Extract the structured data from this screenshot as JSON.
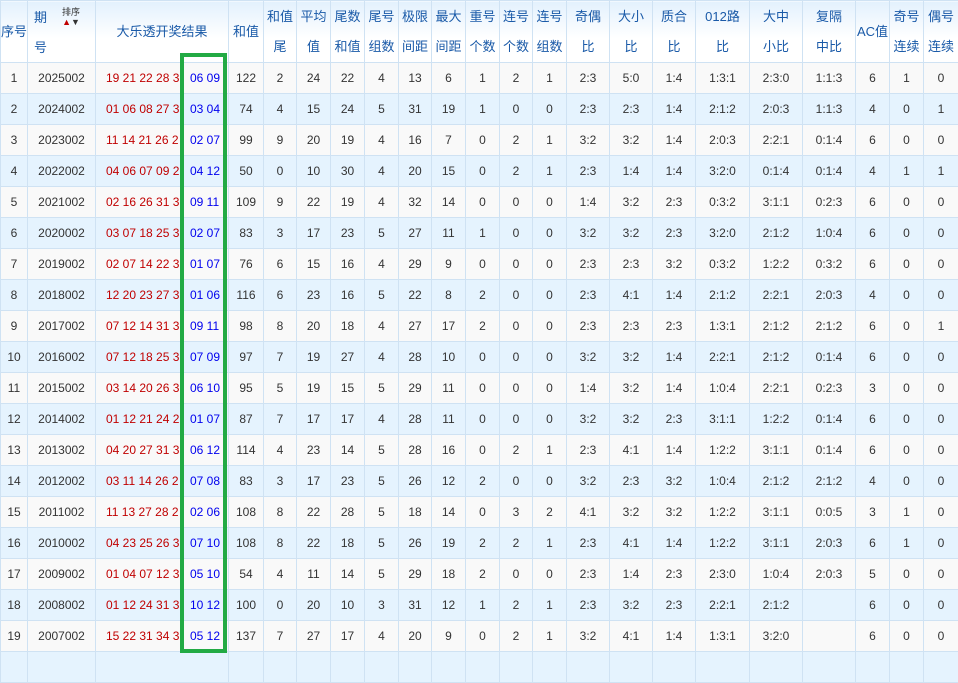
{
  "header": {
    "index": "序号",
    "issue_top": "期",
    "issue_bottom": "号",
    "sort_label": "排序",
    "result": "大乐透开奖结果",
    "cols": [
      [
        "和值"
      ],
      [
        "和值",
        "尾"
      ],
      [
        "平均",
        "值"
      ],
      [
        "尾数",
        "和值"
      ],
      [
        "尾号",
        "组数"
      ],
      [
        "极限",
        "间距"
      ],
      [
        "最大",
        "间距"
      ],
      [
        "重号",
        "个数"
      ],
      [
        "连号",
        "个数"
      ],
      [
        "连号",
        "组数"
      ],
      [
        "奇偶",
        "比"
      ],
      [
        "大小",
        "比"
      ],
      [
        "质合",
        "比"
      ],
      [
        "012路",
        "比"
      ],
      [
        "大中",
        "小比"
      ],
      [
        "复隔",
        "中比"
      ],
      [
        "AC值"
      ],
      [
        "奇号",
        "连续"
      ],
      [
        "偶号",
        "连续"
      ]
    ]
  },
  "colors": {
    "red_ball": "#c00000",
    "blue_ball": "#0000ee",
    "highlight_box": "#22aa44"
  },
  "rows": [
    [
      "1",
      "2025002",
      "19 21 22 28 3",
      "06 09",
      "122",
      "2",
      "24",
      "22",
      "4",
      "13",
      "6",
      "1",
      "2",
      "1",
      "2:3",
      "5:0",
      "1:4",
      "1:3:1",
      "2:3:0",
      "1:1:3",
      "6",
      "1",
      "0"
    ],
    [
      "2",
      "2024002",
      "01 06 08 27 3",
      "03 04",
      "74",
      "4",
      "15",
      "24",
      "5",
      "31",
      "19",
      "1",
      "0",
      "0",
      "2:3",
      "2:3",
      "1:4",
      "2:1:2",
      "2:0:3",
      "1:1:3",
      "4",
      "0",
      "1"
    ],
    [
      "3",
      "2023002",
      "11 14 21 26 2",
      "02 07",
      "99",
      "9",
      "20",
      "19",
      "4",
      "16",
      "7",
      "0",
      "2",
      "1",
      "3:2",
      "3:2",
      "1:4",
      "2:0:3",
      "2:2:1",
      "0:1:4",
      "6",
      "0",
      "0"
    ],
    [
      "4",
      "2022002",
      "04 06 07 09 2",
      "04 12",
      "50",
      "0",
      "10",
      "30",
      "4",
      "20",
      "15",
      "0",
      "2",
      "1",
      "2:3",
      "1:4",
      "1:4",
      "3:2:0",
      "0:1:4",
      "0:1:4",
      "4",
      "1",
      "1"
    ],
    [
      "5",
      "2021002",
      "02 16 26 31 3",
      "09 11",
      "109",
      "9",
      "22",
      "19",
      "4",
      "32",
      "14",
      "0",
      "0",
      "0",
      "1:4",
      "3:2",
      "2:3",
      "0:3:2",
      "3:1:1",
      "0:2:3",
      "6",
      "0",
      "0"
    ],
    [
      "6",
      "2020002",
      "03 07 18 25 3",
      "02 07",
      "83",
      "3",
      "17",
      "23",
      "5",
      "27",
      "11",
      "1",
      "0",
      "0",
      "3:2",
      "3:2",
      "2:3",
      "3:2:0",
      "2:1:2",
      "1:0:4",
      "6",
      "0",
      "0"
    ],
    [
      "7",
      "2019002",
      "02 07 14 22 3",
      "01 07",
      "76",
      "6",
      "15",
      "16",
      "4",
      "29",
      "9",
      "0",
      "0",
      "0",
      "2:3",
      "2:3",
      "3:2",
      "0:3:2",
      "1:2:2",
      "0:3:2",
      "6",
      "0",
      "0"
    ],
    [
      "8",
      "2018002",
      "12 20 23 27 3",
      "01 06",
      "116",
      "6",
      "23",
      "16",
      "5",
      "22",
      "8",
      "2",
      "0",
      "0",
      "2:3",
      "4:1",
      "1:4",
      "2:1:2",
      "2:2:1",
      "2:0:3",
      "4",
      "0",
      "0"
    ],
    [
      "9",
      "2017002",
      "07 12 14 31 3",
      "09 11",
      "98",
      "8",
      "20",
      "18",
      "4",
      "27",
      "17",
      "2",
      "0",
      "0",
      "2:3",
      "2:3",
      "2:3",
      "1:3:1",
      "2:1:2",
      "2:1:2",
      "6",
      "0",
      "1"
    ],
    [
      "10",
      "2016002",
      "07 12 18 25 3",
      "07 09",
      "97",
      "7",
      "19",
      "27",
      "4",
      "28",
      "10",
      "0",
      "0",
      "0",
      "3:2",
      "3:2",
      "1:4",
      "2:2:1",
      "2:1:2",
      "0:1:4",
      "6",
      "0",
      "0"
    ],
    [
      "11",
      "2015002",
      "03 14 20 26 3",
      "06 10",
      "95",
      "5",
      "19",
      "15",
      "5",
      "29",
      "11",
      "0",
      "0",
      "0",
      "1:4",
      "3:2",
      "1:4",
      "1:0:4",
      "2:2:1",
      "0:2:3",
      "3",
      "0",
      "0"
    ],
    [
      "12",
      "2014002",
      "01 12 21 24 2",
      "01 07",
      "87",
      "7",
      "17",
      "17",
      "4",
      "28",
      "11",
      "0",
      "0",
      "0",
      "3:2",
      "3:2",
      "2:3",
      "3:1:1",
      "1:2:2",
      "0:1:4",
      "6",
      "0",
      "0"
    ],
    [
      "13",
      "2013002",
      "04 20 27 31 3",
      "06 12",
      "114",
      "4",
      "23",
      "14",
      "5",
      "28",
      "16",
      "0",
      "2",
      "1",
      "2:3",
      "4:1",
      "1:4",
      "1:2:2",
      "3:1:1",
      "0:1:4",
      "6",
      "0",
      "0"
    ],
    [
      "14",
      "2012002",
      "03 11 14 26 2",
      "07 08",
      "83",
      "3",
      "17",
      "23",
      "5",
      "26",
      "12",
      "2",
      "0",
      "0",
      "3:2",
      "2:3",
      "3:2",
      "1:0:4",
      "2:1:2",
      "2:1:2",
      "4",
      "0",
      "0"
    ],
    [
      "15",
      "2011002",
      "11 13 27 28 2",
      "02 06",
      "108",
      "8",
      "22",
      "28",
      "5",
      "18",
      "14",
      "0",
      "3",
      "2",
      "4:1",
      "3:2",
      "3:2",
      "1:2:2",
      "3:1:1",
      "0:0:5",
      "3",
      "1",
      "0"
    ],
    [
      "16",
      "2010002",
      "04 23 25 26 3",
      "07 10",
      "108",
      "8",
      "22",
      "18",
      "5",
      "26",
      "19",
      "2",
      "2",
      "1",
      "2:3",
      "4:1",
      "1:4",
      "1:2:2",
      "3:1:1",
      "2:0:3",
      "6",
      "1",
      "0"
    ],
    [
      "17",
      "2009002",
      "01 04 07 12 3",
      "05 10",
      "54",
      "4",
      "11",
      "14",
      "5",
      "29",
      "18",
      "2",
      "0",
      "0",
      "2:3",
      "1:4",
      "2:3",
      "2:3:0",
      "1:0:4",
      "2:0:3",
      "5",
      "0",
      "0"
    ],
    [
      "18",
      "2008002",
      "01 12 24 31 3",
      "10 12",
      "100",
      "0",
      "20",
      "10",
      "3",
      "31",
      "12",
      "1",
      "2",
      "1",
      "2:3",
      "3:2",
      "2:3",
      "2:2:1",
      "2:1:2",
      "",
      "6",
      "0",
      "0"
    ],
    [
      "19",
      "2007002",
      "15 22 31 34 3",
      "05 12",
      "137",
      "7",
      "27",
      "17",
      "4",
      "20",
      "9",
      "0",
      "2",
      "1",
      "3:2",
      "4:1",
      "1:4",
      "1:3:1",
      "3:2:0",
      "",
      "6",
      "0",
      "0"
    ]
  ]
}
